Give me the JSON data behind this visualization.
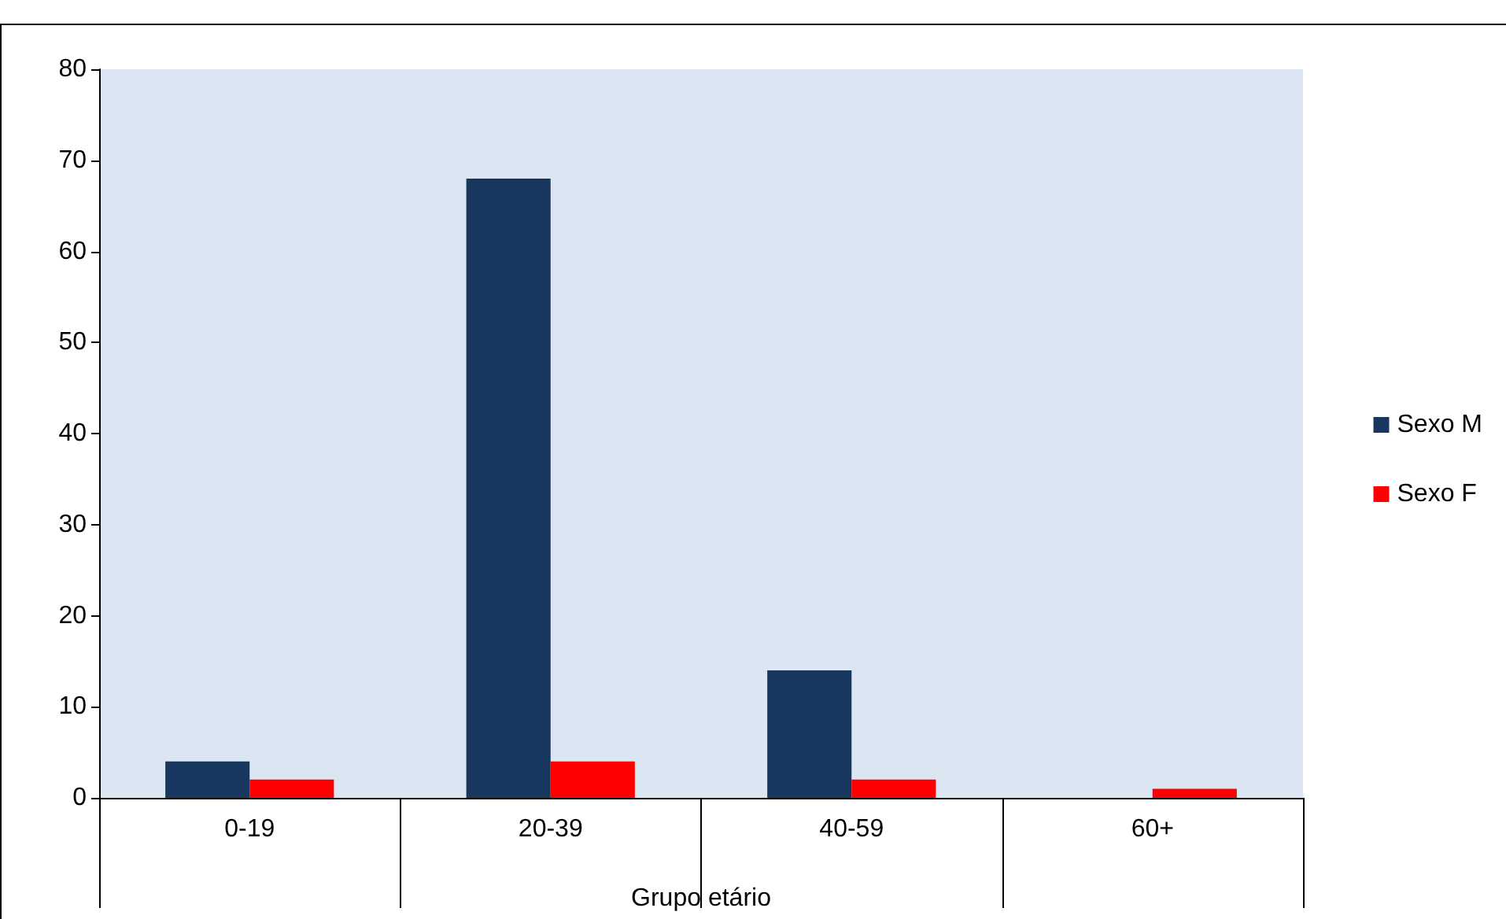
{
  "chart_data": {
    "type": "bar",
    "xlabel": "Grupo etário",
    "categories": [
      "0-19",
      "20-39",
      "40-59",
      "60+"
    ],
    "series": [
      {
        "name": "Sexo M",
        "color": "#17375e",
        "values": [
          4,
          68,
          14,
          0
        ]
      },
      {
        "name": "Sexo F",
        "color": "#ff0000",
        "values": [
          2,
          4,
          2,
          1
        ]
      }
    ],
    "ylim": [
      0,
      80
    ],
    "yticks": [
      0,
      10,
      20,
      30,
      40,
      50,
      60,
      70,
      80
    ],
    "grid": false,
    "legend": "right"
  }
}
